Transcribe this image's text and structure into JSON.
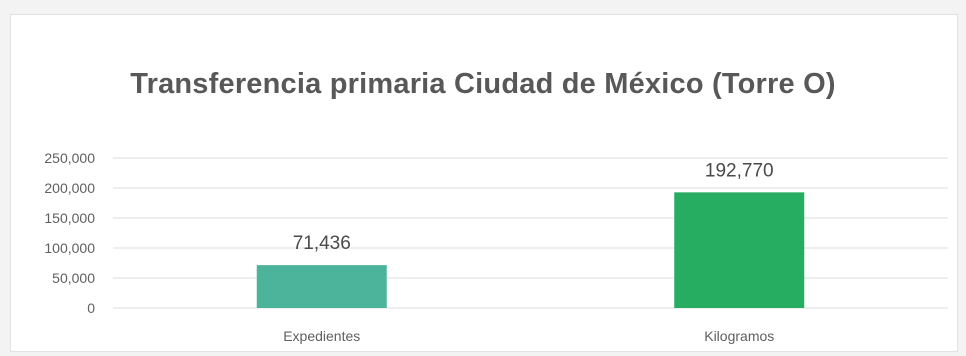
{
  "chart_data": {
    "type": "bar",
    "title": "Transferencia primaria Ciudad de México (Torre O)",
    "categories": [
      "Expedientes",
      "Kilogramos"
    ],
    "values": [
      71436,
      192770
    ],
    "data_labels": [
      "71,436",
      "192,770"
    ],
    "bar_colors": [
      "#4bb49b",
      "#27ad62"
    ],
    "ylim": [
      0,
      250000
    ],
    "y_ticks": [
      0,
      50000,
      100000,
      150000,
      200000,
      250000
    ],
    "y_tick_labels": [
      "0",
      "50,000",
      "100,000",
      "150,000",
      "200,000",
      "250,000"
    ],
    "xlabel": "",
    "ylabel": "",
    "grid": true,
    "legend": "none"
  }
}
